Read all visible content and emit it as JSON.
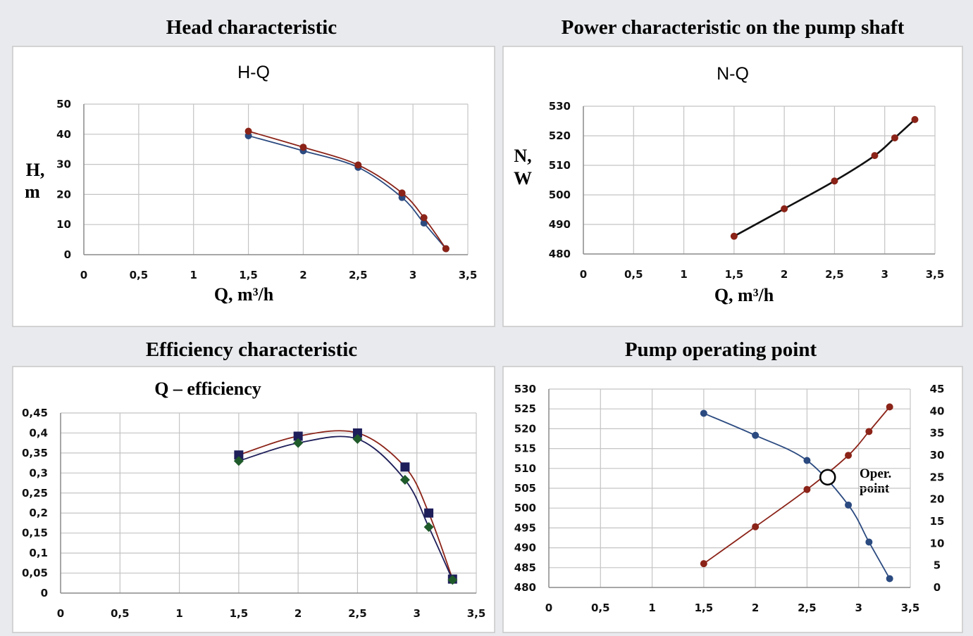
{
  "colors": {
    "blue": "#2b4a80",
    "red": "#8b2318",
    "black": "#111111",
    "navy": "#1e1e5a",
    "green": "#1f5a2a"
  },
  "panels": [
    {
      "id": "head",
      "heading": "Head characteristic",
      "inner_title": "H-Q",
      "ylabel_line1": "H,",
      "ylabel_line2": "m",
      "xlabel": "Q, m³/h"
    },
    {
      "id": "power",
      "heading": "Power characteristic on the pump shaft",
      "inner_title": "N-Q",
      "ylabel_line1": "N,",
      "ylabel_line2": "W",
      "xlabel": "Q, m³/h"
    },
    {
      "id": "efficiency",
      "heading": "Efficiency characteristic",
      "inner_title": "Q – efficiency",
      "ylabel_line1": "",
      "ylabel_line2": "",
      "xlabel": ""
    },
    {
      "id": "operating",
      "heading": "Pump operating point",
      "inner_title": "",
      "ylabel_line1": "",
      "ylabel_line2": "",
      "xlabel": "",
      "annotation_line1": "Oper.",
      "annotation_line2": "point"
    }
  ],
  "chart_data": [
    {
      "type": "line",
      "title": "H-Q",
      "xlabel": "Q, m³/h",
      "ylabel": "H, m",
      "xlim": [
        0,
        3.5
      ],
      "ylim": [
        0,
        50
      ],
      "x_ticks": [
        "0",
        "0,5",
        "1",
        "1,5",
        "2",
        "2,5",
        "3",
        "3,5"
      ],
      "y_ticks": [
        "0",
        "10",
        "20",
        "30",
        "40",
        "50"
      ],
      "grid": true,
      "series": [
        {
          "x": [
            1.5,
            2,
            2.5,
            2.9,
            3.1,
            3.3
          ],
          "y": [
            39.5,
            34.5,
            29,
            19,
            10.5,
            2
          ],
          "color": "#2b4a80",
          "marker": "circle"
        },
        {
          "x": [
            1.5,
            2,
            2.5,
            2.9,
            3.1,
            3.3
          ],
          "y": [
            41,
            35.7,
            29.8,
            20.5,
            12.3,
            2
          ],
          "color": "#8b2318",
          "marker": "circle"
        }
      ]
    },
    {
      "type": "line",
      "title": "N-Q",
      "xlabel": "Q, m³/h",
      "ylabel": "N, W",
      "xlim": [
        0,
        3.5
      ],
      "ylim": [
        480,
        530
      ],
      "x_ticks": [
        "0",
        "0,5",
        "1",
        "1,5",
        "2",
        "2,5",
        "3",
        "3,5"
      ],
      "y_ticks": [
        "480",
        "490",
        "500",
        "510",
        "520",
        "530"
      ],
      "grid": true,
      "series": [
        {
          "x": [
            1.5,
            2,
            2.5,
            2.9,
            3.1,
            3.3
          ],
          "y": [
            486,
            495.3,
            504.7,
            513.3,
            519.3,
            525.5
          ],
          "color": "#111111",
          "marker": "circle",
          "marker_color": "#8b2318"
        }
      ]
    },
    {
      "type": "line",
      "title": "Q – efficiency",
      "xlim": [
        0,
        3.5
      ],
      "ylim": [
        0,
        0.45
      ],
      "x_ticks": [
        "0",
        "0,5",
        "1",
        "1,5",
        "2",
        "2,5",
        "3",
        "3,5"
      ],
      "y_ticks": [
        "0",
        "0,05",
        "0,1",
        "0,15",
        "0,2",
        "0,25",
        "0,3",
        "0,35",
        "0,4",
        "0,45"
      ],
      "grid": true,
      "series": [
        {
          "x": [
            1.5,
            2,
            2.5,
            2.9,
            3.1,
            3.3
          ],
          "y": [
            0.345,
            0.392,
            0.4,
            0.315,
            0.2,
            0.035
          ],
          "color": "#8b2318",
          "marker": "square",
          "marker_color": "#1e1e5a"
        },
        {
          "x": [
            1.5,
            2,
            2.5,
            2.9,
            3.1,
            3.3
          ],
          "y": [
            0.33,
            0.375,
            0.385,
            0.283,
            0.165,
            0.033
          ],
          "color": "#1e1e5a",
          "marker": "diamond",
          "marker_color": "#1f5a2a"
        }
      ]
    },
    {
      "type": "line",
      "title": "",
      "xlim": [
        0,
        3.5
      ],
      "ylim_left": [
        480,
        530
      ],
      "ylim_right": [
        0,
        45
      ],
      "x_ticks": [
        "0",
        "0,5",
        "1",
        "1,5",
        "2",
        "2,5",
        "3",
        "3,5"
      ],
      "y_ticks_left": [
        "480",
        "485",
        "490",
        "495",
        "500",
        "505",
        "510",
        "515",
        "520",
        "525",
        "530"
      ],
      "y_ticks_right": [
        "0",
        "5",
        "10",
        "15",
        "20",
        "25",
        "30",
        "35",
        "40",
        "45"
      ],
      "grid": true,
      "series": [
        {
          "axis": "right",
          "x": [
            1.5,
            2,
            2.5,
            2.9,
            3.1,
            3.3
          ],
          "y": [
            39.5,
            34.5,
            28.8,
            18.7,
            10.3,
            2
          ],
          "color": "#2b4a80",
          "marker": "circle"
        },
        {
          "axis": "left",
          "x": [
            1.5,
            2,
            2.5,
            2.9,
            3.1,
            3.3
          ],
          "y": [
            486,
            495.3,
            504.7,
            513.3,
            519.3,
            525.5
          ],
          "color": "#8b2318",
          "marker": "circle"
        }
      ],
      "operating_point": {
        "x": 2.7,
        "y_right": 25
      }
    }
  ]
}
